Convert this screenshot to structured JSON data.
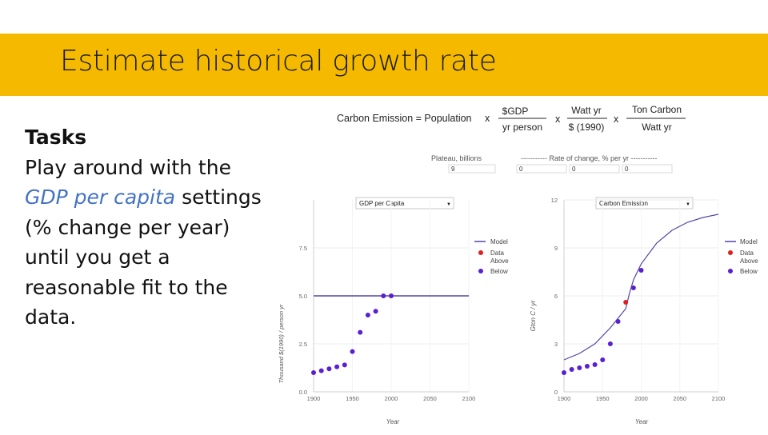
{
  "slide": {
    "title": "Estimate historical growth rate",
    "tasks_heading": "Tasks",
    "tasks_text_1": "Play around with the",
    "tasks_highlight": "GDP per capita",
    "tasks_text_2": "settings (% change per year) until you get a reasonable fit to the data.",
    "banner_color": "#F5BA00",
    "highlight_color": "#4472C4"
  },
  "equation": {
    "lhs": "Carbon Emission = Population",
    "times": "x",
    "factors": [
      {
        "num": "$GDP",
        "den": "yr  person"
      },
      {
        "num": "Watt yr",
        "den": "$ (1990)"
      },
      {
        "num": "Ton Carbon",
        "den": "Watt yr"
      }
    ]
  },
  "controls": {
    "plateau_label": "Plateau, billions",
    "plateau_value": "9",
    "rate_label": "----------- Rate of change, % per yr -----------",
    "rate_values": [
      "0",
      "0",
      "0"
    ]
  },
  "selects": {
    "left_selected": "GDP per Capita",
    "right_selected": "Carbon Emission"
  },
  "legend": {
    "model": "Model",
    "data": "Data",
    "above": "Above",
    "below": "Below",
    "model_color": "#5046A8",
    "data_color": "#E02020",
    "below_color": "#5A1FD0"
  },
  "chart_data": [
    {
      "type": "scatter",
      "title": "",
      "xlabel": "Year",
      "ylabel": "Thousand $(1990) / person yr",
      "xlim": [
        1900,
        2100
      ],
      "ylim": [
        0,
        10
      ],
      "xticks": [
        "1900",
        "1950",
        "2000",
        "2050",
        "2100"
      ],
      "yticks": [
        "0.0",
        "2.5",
        "5.0",
        "7.5"
      ],
      "model": {
        "x": [
          1900,
          2100
        ],
        "y": [
          5.0,
          5.0
        ]
      },
      "below": {
        "x": [
          1900,
          1910,
          1920,
          1930,
          1940,
          1950,
          1960,
          1970,
          1980,
          1990,
          2000
        ],
        "y": [
          1.0,
          1.1,
          1.2,
          1.3,
          1.4,
          2.1,
          3.1,
          4.0,
          4.2,
          5.0,
          5.0
        ]
      },
      "data_points": {
        "x": [],
        "y": []
      },
      "above": {
        "x": [],
        "y": []
      }
    },
    {
      "type": "scatter",
      "title": "",
      "xlabel": "Year",
      "ylabel": "Gton C / yr",
      "xlim": [
        1900,
        2100
      ],
      "ylim": [
        0,
        12
      ],
      "xticks": [
        "1900",
        "1950",
        "2000",
        "2050",
        "2100"
      ],
      "yticks": [
        "0",
        "3",
        "6",
        "9",
        "12"
      ],
      "model": {
        "x": [
          1900,
          1920,
          1940,
          1960,
          1970,
          1980,
          1985,
          1990,
          2000,
          2020,
          2040,
          2060,
          2080,
          2100
        ],
        "y": [
          2.0,
          2.4,
          3.0,
          4.0,
          4.6,
          5.2,
          6.2,
          7.0,
          8.0,
          9.3,
          10.1,
          10.6,
          10.9,
          11.1
        ]
      },
      "below": {
        "x": [
          1900,
          1910,
          1920,
          1930,
          1940,
          1950,
          1960,
          1970,
          1990,
          2000
        ],
        "y": [
          1.2,
          1.4,
          1.5,
          1.6,
          1.7,
          2.0,
          3.0,
          4.4,
          6.5,
          7.6
        ]
      },
      "data_points": {
        "x": [
          1980
        ],
        "y": [
          5.6
        ]
      },
      "above": {
        "x": [],
        "y": []
      }
    }
  ]
}
